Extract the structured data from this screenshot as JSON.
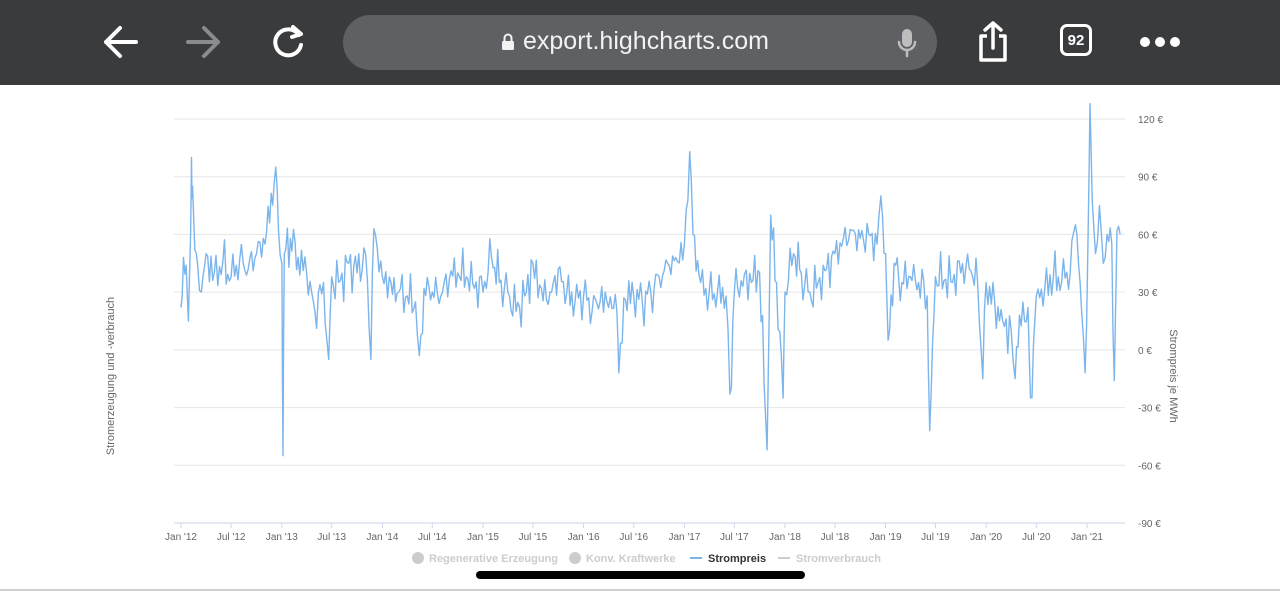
{
  "browser": {
    "url": "export.highcharts.com",
    "tab_count": "92",
    "icons": [
      "back-arrow-icon",
      "forward-arrow-icon",
      "reload-icon",
      "lock-icon",
      "microphone-icon",
      "share-icon",
      "tabs-icon",
      "more-icon"
    ]
  },
  "colors": {
    "series": "#7cb5ec",
    "toolbar": "#3a3b3d",
    "grid": "#e6e6e6",
    "axis_text": "#666666",
    "legend_inactive": "#cccccc"
  },
  "chart_data": {
    "type": "line",
    "title": "",
    "ylabel_left": "Stromerzeugung und -verbrauch",
    "ylabel_right": "Strompreis je MWh",
    "y_ticks": [
      "120 €",
      "90 €",
      "60 €",
      "30 €",
      "0 €",
      "-30 €",
      "-60 €",
      "-90 €"
    ],
    "ylim": [
      -90,
      120
    ],
    "x_ticks": [
      "Jan '12",
      "Jul '12",
      "Jan '13",
      "Jul '13",
      "Jan '14",
      "Jul '14",
      "Jan '15",
      "Jul '15",
      "Jan '16",
      "Jul '16",
      "Jan '17",
      "Jul '17",
      "Jan '18",
      "Jul '18",
      "Jan '19",
      "Jul '19",
      "Jan '20",
      "Jul '20",
      "Jan '21"
    ],
    "xlim": [
      "2012-01-01",
      "2021-05-01"
    ],
    "legend_position": "bottom-center",
    "legend": [
      {
        "name": "Regenerative Erzeugung",
        "symbol": "circle",
        "active": false
      },
      {
        "name": "Konv. Kraftwerke",
        "symbol": "circle",
        "active": false
      },
      {
        "name": "Strompreis",
        "symbol": "line",
        "active": true
      },
      {
        "name": "Stromverbrauch",
        "symbol": "line",
        "active": false
      }
    ],
    "series": [
      {
        "name": "Strompreis",
        "axis": "right",
        "points": [
          [
            "2012-01-01",
            22
          ],
          [
            "2012-01-10",
            48
          ],
          [
            "2012-01-20",
            44
          ],
          [
            "2012-01-28",
            15
          ],
          [
            "2012-02-05",
            60
          ],
          [
            "2012-02-08",
            100
          ],
          [
            "2012-02-12",
            85
          ],
          [
            "2012-02-20",
            52
          ],
          [
            "2012-03-01",
            45
          ],
          [
            "2012-03-15",
            30
          ],
          [
            "2012-04-01",
            50
          ],
          [
            "2012-05-01",
            40
          ],
          [
            "2012-06-01",
            46
          ],
          [
            "2012-07-01",
            38
          ],
          [
            "2012-08-01",
            47
          ],
          [
            "2012-09-01",
            42
          ],
          [
            "2012-10-01",
            50
          ],
          [
            "2012-11-01",
            55
          ],
          [
            "2012-12-10",
            95
          ],
          [
            "2012-12-20",
            62
          ],
          [
            "2013-01-01",
            45
          ],
          [
            "2013-01-05",
            -55
          ],
          [
            "2013-01-10",
            50
          ],
          [
            "2013-02-01",
            58
          ],
          [
            "2013-03-01",
            48
          ],
          [
            "2013-04-01",
            40
          ],
          [
            "2013-05-01",
            20
          ],
          [
            "2013-06-01",
            35
          ],
          [
            "2013-06-20",
            -5
          ],
          [
            "2013-07-01",
            38
          ],
          [
            "2013-08-01",
            36
          ],
          [
            "2013-09-01",
            45
          ],
          [
            "2013-10-01",
            40
          ],
          [
            "2013-11-01",
            50
          ],
          [
            "2013-11-20",
            -5
          ],
          [
            "2013-12-01",
            63
          ],
          [
            "2014-01-01",
            38
          ],
          [
            "2014-02-01",
            35
          ],
          [
            "2014-03-01",
            30
          ],
          [
            "2014-04-01",
            28
          ],
          [
            "2014-05-01",
            25
          ],
          [
            "2014-05-15",
            -3
          ],
          [
            "2014-06-01",
            32
          ],
          [
            "2014-07-01",
            30
          ],
          [
            "2014-08-01",
            28
          ],
          [
            "2014-09-01",
            37
          ],
          [
            "2014-10-01",
            40
          ],
          [
            "2014-11-01",
            38
          ],
          [
            "2014-12-01",
            32
          ],
          [
            "2015-01-01",
            30
          ],
          [
            "2015-02-01",
            48
          ],
          [
            "2015-03-01",
            35
          ],
          [
            "2015-04-01",
            30
          ],
          [
            "2015-05-01",
            20
          ],
          [
            "2015-06-01",
            28
          ],
          [
            "2015-07-01",
            45
          ],
          [
            "2015-08-01",
            32
          ],
          [
            "2015-09-01",
            30
          ],
          [
            "2015-10-01",
            42
          ],
          [
            "2015-11-01",
            30
          ],
          [
            "2015-12-01",
            25
          ],
          [
            "2016-01-01",
            28
          ],
          [
            "2016-02-01",
            20
          ],
          [
            "2016-03-01",
            25
          ],
          [
            "2016-04-01",
            22
          ],
          [
            "2016-05-01",
            20
          ],
          [
            "2016-05-08",
            -12
          ],
          [
            "2016-06-01",
            26
          ],
          [
            "2016-07-01",
            28
          ],
          [
            "2016-08-01",
            25
          ],
          [
            "2016-09-01",
            30
          ],
          [
            "2016-10-01",
            38
          ],
          [
            "2016-11-01",
            45
          ],
          [
            "2016-12-01",
            48
          ],
          [
            "2017-01-01",
            55
          ],
          [
            "2017-01-20",
            103
          ],
          [
            "2017-02-01",
            60
          ],
          [
            "2017-03-01",
            35
          ],
          [
            "2017-04-01",
            30
          ],
          [
            "2017-05-01",
            30
          ],
          [
            "2017-06-01",
            28
          ],
          [
            "2017-06-15",
            -23
          ],
          [
            "2017-07-01",
            30
          ],
          [
            "2017-08-01",
            33
          ],
          [
            "2017-09-01",
            35
          ],
          [
            "2017-10-01",
            40
          ],
          [
            "2017-10-28",
            -52
          ],
          [
            "2017-11-10",
            70
          ],
          [
            "2017-12-01",
            35
          ],
          [
            "2017-12-25",
            -25
          ],
          [
            "2018-01-01",
            30
          ],
          [
            "2018-02-01",
            50
          ],
          [
            "2018-03-01",
            40
          ],
          [
            "2018-04-01",
            30
          ],
          [
            "2018-05-01",
            35
          ],
          [
            "2018-06-01",
            42
          ],
          [
            "2018-07-01",
            50
          ],
          [
            "2018-08-01",
            58
          ],
          [
            "2018-09-01",
            62
          ],
          [
            "2018-10-01",
            58
          ],
          [
            "2018-11-01",
            60
          ],
          [
            "2018-12-01",
            55
          ],
          [
            "2018-12-15",
            80
          ],
          [
            "2019-01-01",
            50
          ],
          [
            "2019-01-10",
            5
          ],
          [
            "2019-02-01",
            45
          ],
          [
            "2019-03-01",
            35
          ],
          [
            "2019-04-01",
            38
          ],
          [
            "2019-05-01",
            35
          ],
          [
            "2019-06-01",
            28
          ],
          [
            "2019-06-10",
            -42
          ],
          [
            "2019-07-01",
            38
          ],
          [
            "2019-08-01",
            36
          ],
          [
            "2019-09-01",
            35
          ],
          [
            "2019-10-01",
            40
          ],
          [
            "2019-11-01",
            42
          ],
          [
            "2019-12-01",
            35
          ],
          [
            "2019-12-20",
            -15
          ],
          [
            "2020-01-01",
            35
          ],
          [
            "2020-02-01",
            25
          ],
          [
            "2020-03-01",
            15
          ],
          [
            "2020-04-01",
            10
          ],
          [
            "2020-04-15",
            -15
          ],
          [
            "2020-05-01",
            18
          ],
          [
            "2020-06-01",
            22
          ],
          [
            "2020-06-10",
            -25
          ],
          [
            "2020-07-01",
            28
          ],
          [
            "2020-08-01",
            32
          ],
          [
            "2020-09-01",
            38
          ],
          [
            "2020-10-01",
            35
          ],
          [
            "2020-11-01",
            40
          ],
          [
            "2020-11-20",
            65
          ],
          [
            "2020-12-01",
            45
          ],
          [
            "2020-12-25",
            -12
          ],
          [
            "2021-01-05",
            60
          ],
          [
            "2021-01-12",
            128
          ],
          [
            "2021-01-20",
            78
          ],
          [
            "2021-02-01",
            50
          ],
          [
            "2021-02-15",
            75
          ],
          [
            "2021-03-01",
            45
          ],
          [
            "2021-03-15",
            60
          ],
          [
            "2021-04-01",
            55
          ],
          [
            "2021-04-10",
            -16
          ],
          [
            "2021-04-20",
            62
          ],
          [
            "2021-05-01",
            60
          ]
        ]
      }
    ]
  }
}
